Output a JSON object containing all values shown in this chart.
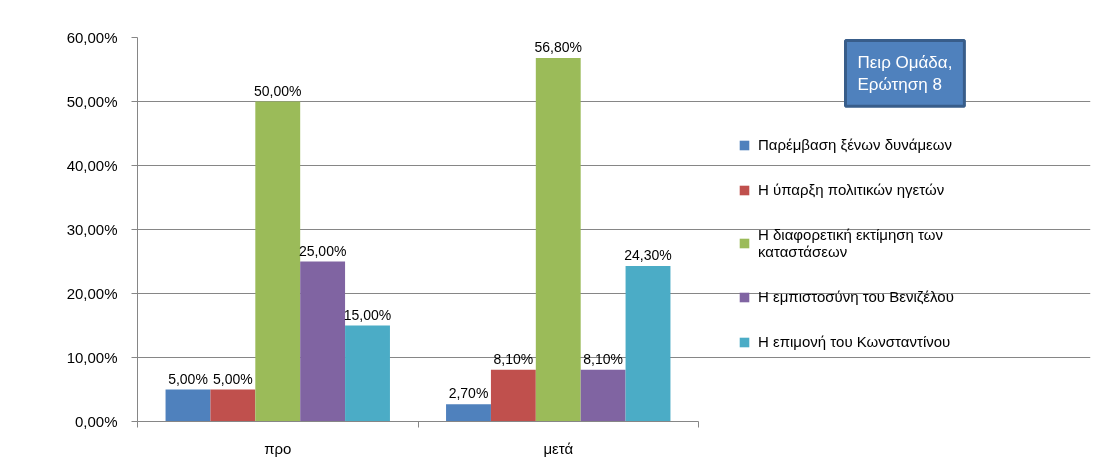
{
  "chart_data": {
    "type": "bar",
    "title": "Πειρ Ομάδα, Ερώτηση 8",
    "categories": [
      "προ",
      "μετά"
    ],
    "series": [
      {
        "name": "Παρέμβαση ξένων δυνάμεων",
        "color": "#4f81bd",
        "values": [
          5,
          2.7
        ],
        "value_labels": [
          "5,00%",
          "2,70%"
        ]
      },
      {
        "name": "Η ύπαρξη πολιτικών ηγετών",
        "color": "#c0504d",
        "values": [
          5,
          8.1
        ],
        "value_labels": [
          "5,00%",
          "8,10%"
        ]
      },
      {
        "name": "Η διαφορετική εκτίμηση των καταστάσεων",
        "color": "#9bbb59",
        "values": [
          50,
          56.8
        ],
        "value_labels": [
          "50,00%",
          "56,80%"
        ]
      },
      {
        "name": "Η εμπιστοσύνη του Βενιζέλου",
        "color": "#8064a2",
        "values": [
          25,
          8.1
        ],
        "value_labels": [
          "25,00%",
          "8,10%"
        ]
      },
      {
        "name": "Η επιμονή του Κωνσταντίνου",
        "color": "#4bacc6",
        "values": [
          15,
          24.3
        ],
        "value_labels": [
          "15,00%",
          "24,30%"
        ]
      }
    ],
    "ylim": [
      0,
      60
    ],
    "yticks": [
      {
        "value": 0,
        "label": "0,00%"
      },
      {
        "value": 10,
        "label": "10,00%"
      },
      {
        "value": 20,
        "label": "20,00%"
      },
      {
        "value": 30,
        "label": "30,00%"
      },
      {
        "value": 40,
        "label": "40,00%"
      },
      {
        "value": 50,
        "label": "50,00%"
      },
      {
        "value": 60,
        "label": "60,00%"
      }
    ],
    "grid": "y",
    "legend": "right"
  }
}
